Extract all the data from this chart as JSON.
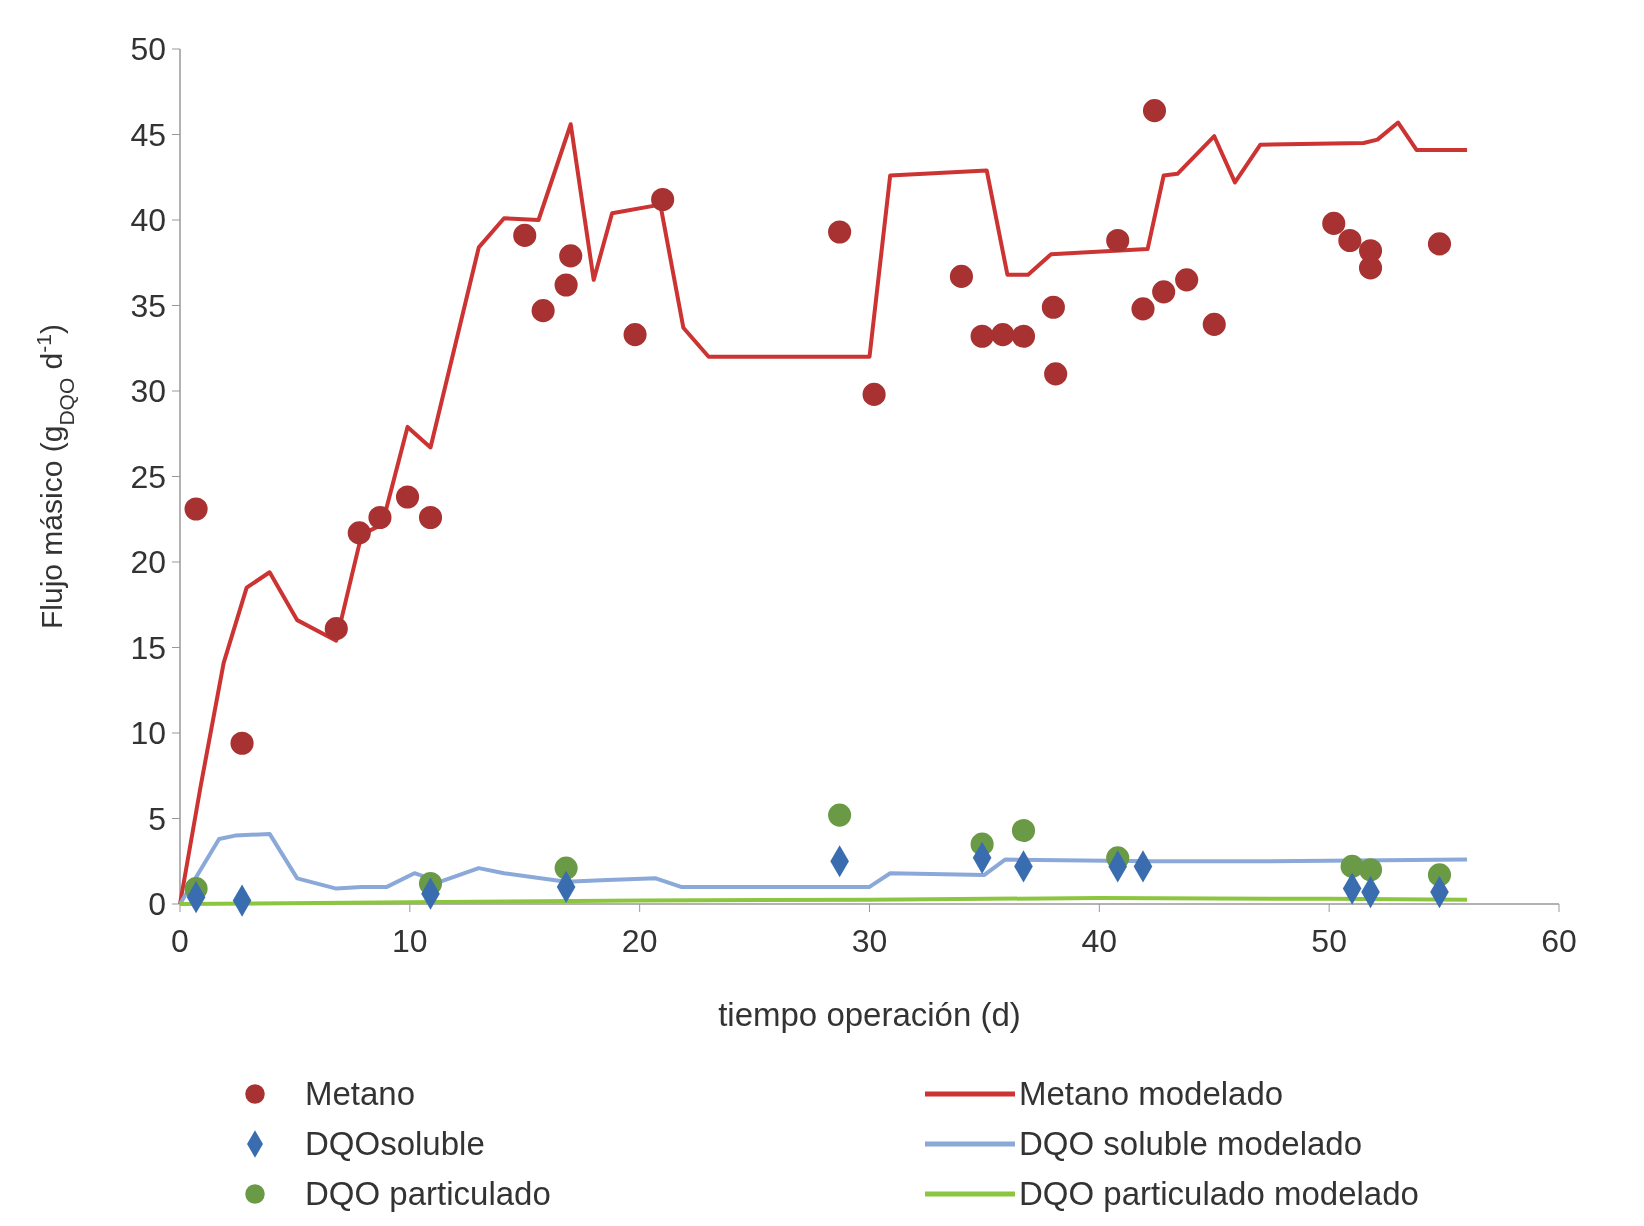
{
  "chart_data": {
    "type": "scatter",
    "xlabel": "tiempo operación (d)",
    "ylabel": "Flujo másico (g$_{DQO}$ d$^{-1}$)",
    "xlim": [
      0,
      60
    ],
    "ylim": [
      0,
      50
    ],
    "xticks": [
      0,
      10,
      20,
      30,
      40,
      50,
      60
    ],
    "yticks": [
      0,
      5,
      10,
      15,
      20,
      25,
      30,
      35,
      40,
      45,
      50
    ],
    "grid": false,
    "legend": "bottom",
    "series": [
      {
        "name": "Metano",
        "marker": "circle",
        "color": "#a83232",
        "x": [
          0.7,
          2.7,
          6.8,
          7.8,
          8.7,
          9.9,
          10.9,
          15.0,
          15.8,
          16.8,
          17.0,
          19.8,
          21.0,
          28.7,
          30.2,
          34.0,
          34.9,
          35.8,
          36.7,
          38.0,
          38.1,
          40.8,
          41.9,
          42.4,
          42.8,
          43.8,
          45.0,
          50.2,
          50.9,
          51.8,
          51.8,
          54.8
        ],
        "values": [
          23.1,
          9.4,
          16.1,
          21.7,
          22.6,
          23.8,
          22.6,
          39.1,
          34.7,
          36.2,
          37.9,
          33.3,
          41.2,
          39.3,
          29.8,
          36.7,
          33.2,
          33.3,
          33.2,
          34.9,
          31.0,
          38.8,
          34.8,
          46.4,
          35.8,
          36.5,
          33.9,
          39.8,
          38.8,
          38.2,
          37.2,
          38.6
        ]
      },
      {
        "name": "Metano modelado",
        "type": "line",
        "marker": "none",
        "line_style": "solid",
        "color": "#cc3333",
        "x": [
          0,
          0.9,
          1.9,
          2.9,
          3.9,
          5.1,
          6.8,
          7.9,
          8.8,
          9.9,
          10.9,
          13.0,
          14.1,
          15.6,
          17.0,
          18.0,
          18.8,
          20.9,
          21.9,
          23.0,
          30.0,
          30.9,
          35.1,
          36.0,
          36.9,
          37.9,
          42.1,
          42.8,
          43.4,
          45.0,
          45.9,
          47.0,
          51.5,
          52.1,
          53.0,
          53.8,
          56.0
        ],
        "values": [
          0,
          6.9,
          14.1,
          18.5,
          19.4,
          16.6,
          15.4,
          21.6,
          22.2,
          27.9,
          26.7,
          38.4,
          40.1,
          40.0,
          45.6,
          36.5,
          40.4,
          40.9,
          33.7,
          32.0,
          32.0,
          42.6,
          42.9,
          36.8,
          36.8,
          38.0,
          38.3,
          42.6,
          42.7,
          44.9,
          42.2,
          44.4,
          44.5,
          44.7,
          45.7,
          44.1,
          44.1
        ]
      },
      {
        "name": "DQOsoluble",
        "marker": "diamond",
        "color": "#3a6db0",
        "x": [
          0.7,
          2.7,
          10.9,
          16.8,
          28.7,
          34.9,
          36.7,
          40.8,
          41.9,
          51.0,
          51.8,
          54.8
        ],
        "values": [
          0.4,
          0.2,
          0.6,
          1.0,
          2.5,
          2.7,
          2.2,
          2.2,
          2.2,
          0.9,
          0.7,
          0.7
        ]
      },
      {
        "name": "DQO soluble modelado",
        "type": "line",
        "marker": "none",
        "line_style": "solid",
        "color": "#8aa8d8",
        "x": [
          0,
          1.7,
          2.4,
          3.9,
          5.1,
          6.8,
          7.9,
          9.0,
          10.2,
          11.3,
          13.0,
          14.1,
          16.8,
          18.6,
          20.7,
          21.8,
          30.0,
          30.9,
          35.0,
          35.9,
          42.3,
          46.9,
          56.0
        ],
        "values": [
          0,
          3.8,
          4.0,
          4.1,
          1.5,
          0.9,
          1.0,
          1.0,
          1.8,
          1.3,
          2.1,
          1.8,
          1.3,
          1.4,
          1.5,
          1.0,
          1.0,
          1.8,
          1.7,
          2.6,
          2.5,
          2.5,
          2.6
        ]
      },
      {
        "name": "DQO particulado",
        "marker": "circle",
        "color": "#6a9a46",
        "x": [
          0.7,
          10.9,
          16.8,
          28.7,
          34.9,
          36.7,
          40.8,
          51.0,
          51.8,
          54.8
        ],
        "values": [
          0.9,
          1.2,
          2.1,
          5.2,
          3.5,
          4.3,
          2.7,
          2.2,
          2.0,
          1.7
        ]
      },
      {
        "name": "DQO particulado modelado",
        "type": "line",
        "marker": "none",
        "line_style": "solid",
        "color": "#8cc63f",
        "x": [
          0,
          10,
          20,
          30,
          40,
          50,
          56
        ],
        "values": [
          0,
          0.1,
          0.2,
          0.25,
          0.35,
          0.3,
          0.25
        ]
      }
    ]
  }
}
